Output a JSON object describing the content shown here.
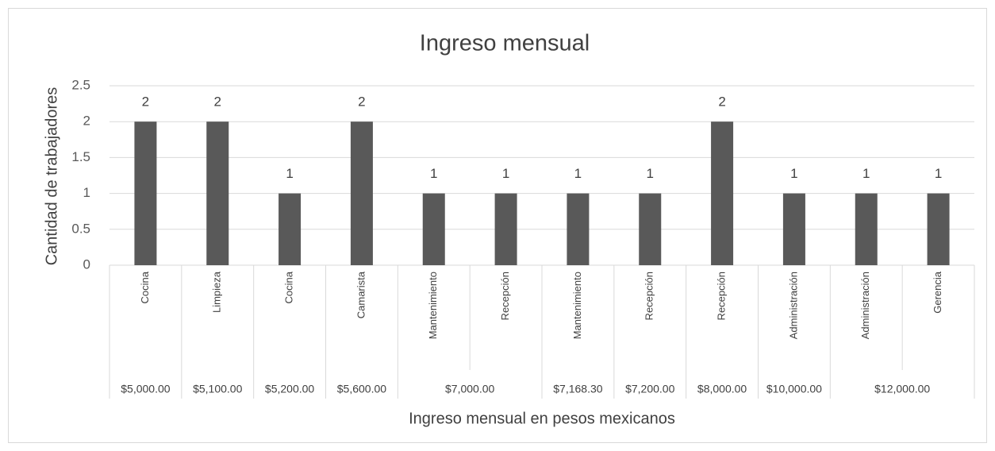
{
  "chart_data": {
    "type": "bar",
    "title": "Ingreso mensual",
    "y_label": "Cantidad de trabajadores",
    "x_label": "Ingreso mensual en pesos mexicanos",
    "groups": [
      {
        "label": "$5,000.00",
        "categories": [
          "Cocina"
        ]
      },
      {
        "label": "$5,100.00",
        "categories": [
          "Limpieza"
        ]
      },
      {
        "label": "$5,200.00",
        "categories": [
          "Cocina"
        ]
      },
      {
        "label": "$5,600.00",
        "categories": [
          "Camarista"
        ]
      },
      {
        "label": "$7,000.00",
        "categories": [
          "Mantenimiento",
          "Recepción"
        ]
      },
      {
        "label": "$7,168.30",
        "categories": [
          "Mantenimiento"
        ]
      },
      {
        "label": "$7,200.00",
        "categories": [
          "Recepción"
        ]
      },
      {
        "label": "$8,000.00",
        "categories": [
          "Recepción"
        ]
      },
      {
        "label": "$10,000.00",
        "categories": [
          "Administración"
        ]
      },
      {
        "label": "$12,000.00",
        "categories": [
          "Administración",
          "Gerencia"
        ]
      }
    ],
    "values": [
      2,
      2,
      1,
      2,
      1,
      1,
      1,
      1,
      2,
      1,
      1,
      1
    ],
    "color": "#595959",
    "ylim": [
      0,
      2.5
    ],
    "yticks": [
      0,
      0.5,
      1,
      1.5,
      2,
      2.5
    ],
    "grid": true
  }
}
